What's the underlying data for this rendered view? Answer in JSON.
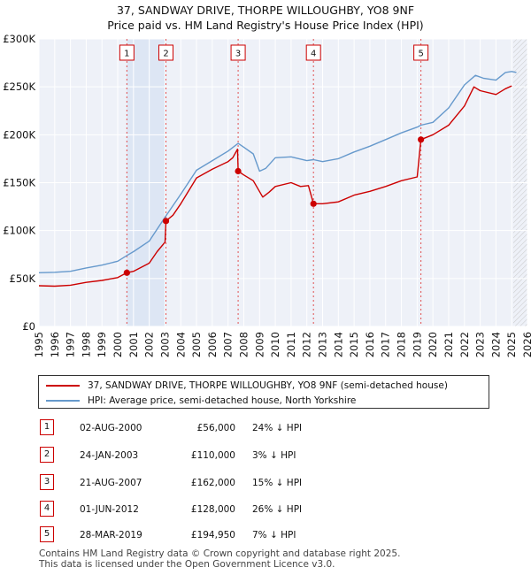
{
  "title_line1": "37, SANDWAY DRIVE, THORPE WILLOUGHBY, YO8 9NF",
  "title_line2": "Price paid vs. HM Land Registry's House Price Index (HPI)",
  "chart_data": {
    "type": "line",
    "xlim": [
      1995,
      2026
    ],
    "ylim": [
      0,
      300000
    ],
    "x_ticks": [
      1995,
      1996,
      1997,
      1998,
      1999,
      2000,
      2001,
      2002,
      2003,
      2004,
      2005,
      2006,
      2007,
      2008,
      2009,
      2010,
      2011,
      2012,
      2013,
      2014,
      2015,
      2016,
      2017,
      2018,
      2019,
      2020,
      2021,
      2022,
      2023,
      2024,
      2025,
      2026
    ],
    "y_ticks": [
      0,
      50000,
      100000,
      150000,
      200000,
      250000,
      300000
    ],
    "y_tick_labels": [
      "£0",
      "£50K",
      "£100K",
      "£150K",
      "£200K",
      "£250K",
      "£300K"
    ],
    "forecast_from": 2025.1,
    "series": [
      {
        "name": "37, SANDWAY DRIVE, THORPE WILLOUGHBY, YO8 9NF (semi-detached house)",
        "color": "#cc0000",
        "points": [
          [
            1995.0,
            42500
          ],
          [
            1996.0,
            42000
          ],
          [
            1997.0,
            43000
          ],
          [
            1998.0,
            46000
          ],
          [
            1999.0,
            48000
          ],
          [
            2000.0,
            51000
          ],
          [
            2000.58,
            56000
          ],
          [
            2001.0,
            57500
          ],
          [
            2002.0,
            66000
          ],
          [
            2002.5,
            78000
          ],
          [
            2003.0,
            88000
          ],
          [
            2003.06,
            110000
          ],
          [
            2003.5,
            116000
          ],
          [
            2004.0,
            128000
          ],
          [
            2005.0,
            155000
          ],
          [
            2006.0,
            164000
          ],
          [
            2007.0,
            172000
          ],
          [
            2007.3,
            176000
          ],
          [
            2007.6,
            185000
          ],
          [
            2007.64,
            162000
          ],
          [
            2008.0,
            158000
          ],
          [
            2008.6,
            152000
          ],
          [
            2009.2,
            135000
          ],
          [
            2009.6,
            140000
          ],
          [
            2010.0,
            146000
          ],
          [
            2011.0,
            150000
          ],
          [
            2011.6,
            146000
          ],
          [
            2012.1,
            147000
          ],
          [
            2012.42,
            128000
          ],
          [
            2013.0,
            128000
          ],
          [
            2014.0,
            130000
          ],
          [
            2015.0,
            137000
          ],
          [
            2016.0,
            141000
          ],
          [
            2017.0,
            146000
          ],
          [
            2018.0,
            152000
          ],
          [
            2019.0,
            156000
          ],
          [
            2019.24,
            194950
          ],
          [
            2020.0,
            200000
          ],
          [
            2021.0,
            210000
          ],
          [
            2022.0,
            230000
          ],
          [
            2022.6,
            250000
          ],
          [
            2023.0,
            246000
          ],
          [
            2024.0,
            242000
          ],
          [
            2024.6,
            248000
          ],
          [
            2025.0,
            251000
          ]
        ]
      },
      {
        "name": "HPI: Average price, semi-detached house, North Yorkshire",
        "color": "#6699cc",
        "points": [
          [
            1995.0,
            56000
          ],
          [
            1996.0,
            56500
          ],
          [
            1997.0,
            57500
          ],
          [
            1998.0,
            61000
          ],
          [
            1999.0,
            64000
          ],
          [
            2000.0,
            68000
          ],
          [
            2000.58,
            74000
          ],
          [
            2001.0,
            78000
          ],
          [
            2002.0,
            89000
          ],
          [
            2003.0,
            114000
          ],
          [
            2004.0,
            138000
          ],
          [
            2005.0,
            163000
          ],
          [
            2006.0,
            173000
          ],
          [
            2007.0,
            183000
          ],
          [
            2007.64,
            191000
          ],
          [
            2008.0,
            187000
          ],
          [
            2008.6,
            180000
          ],
          [
            2009.0,
            162000
          ],
          [
            2009.4,
            165000
          ],
          [
            2010.0,
            176000
          ],
          [
            2011.0,
            177000
          ],
          [
            2012.0,
            173000
          ],
          [
            2012.42,
            174000
          ],
          [
            2013.0,
            172000
          ],
          [
            2014.0,
            175000
          ],
          [
            2015.0,
            182000
          ],
          [
            2016.0,
            188000
          ],
          [
            2017.0,
            195000
          ],
          [
            2018.0,
            202000
          ],
          [
            2019.0,
            208000
          ],
          [
            2019.24,
            210000
          ],
          [
            2020.0,
            213000
          ],
          [
            2021.0,
            228000
          ],
          [
            2022.0,
            252000
          ],
          [
            2022.7,
            262000
          ],
          [
            2023.2,
            259000
          ],
          [
            2024.0,
            257000
          ],
          [
            2024.6,
            265000
          ],
          [
            2025.0,
            266000
          ],
          [
            2025.3,
            265000
          ]
        ]
      }
    ],
    "markers": [
      {
        "label": "1",
        "x": 2000.58,
        "y": 56000
      },
      {
        "label": "2",
        "x": 2003.06,
        "y": 110000
      },
      {
        "label": "3",
        "x": 2007.64,
        "y": 162000
      },
      {
        "label": "4",
        "x": 2012.42,
        "y": 128000
      },
      {
        "label": "5",
        "x": 2019.24,
        "y": 194950
      }
    ],
    "shaded_spans": [
      [
        2000.58,
        2003.06
      ]
    ]
  },
  "legend": {
    "property_label": "37, SANDWAY DRIVE, THORPE WILLOUGHBY, YO8 9NF (semi-detached house)",
    "hpi_label": "HPI: Average price, semi-detached house, North Yorkshire"
  },
  "transactions": [
    {
      "num": "1",
      "date": "02-AUG-2000",
      "price": "£56,000",
      "hpi": "24% ↓ HPI"
    },
    {
      "num": "2",
      "date": "24-JAN-2003",
      "price": "£110,000",
      "hpi": "3% ↓ HPI"
    },
    {
      "num": "3",
      "date": "21-AUG-2007",
      "price": "£162,000",
      "hpi": "15% ↓ HPI"
    },
    {
      "num": "4",
      "date": "01-JUN-2012",
      "price": "£128,000",
      "hpi": "26% ↓ HPI"
    },
    {
      "num": "5",
      "date": "28-MAR-2019",
      "price": "£194,950",
      "hpi": "7% ↓ HPI"
    }
  ],
  "footer_line1": "Contains HM Land Registry data © Crown copyright and database right 2025.",
  "footer_line2": "This data is licensed under the Open Government Licence v3.0."
}
